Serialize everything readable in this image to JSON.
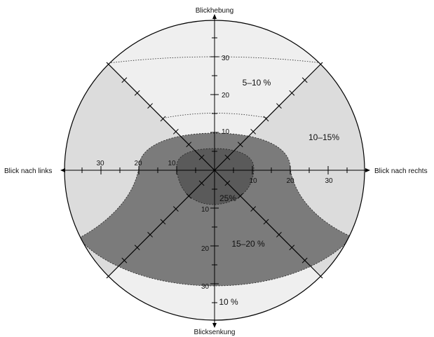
{
  "axes": {
    "top": "Blickhebung",
    "bottom": "Blicksenkung",
    "left": "Blick nach links",
    "right": "Blick nach rechts"
  },
  "ticks": {
    "top": [
      "10",
      "20",
      "30"
    ],
    "bottom": [
      "10",
      "20",
      "30"
    ],
    "left": [
      "10",
      "20",
      "30"
    ],
    "right": [
      "10",
      "20",
      "30"
    ]
  },
  "zones": {
    "upper": "5–10 %",
    "right": "10–15%",
    "lower": "15–20 %",
    "center": "25%",
    "bottom": "10 %"
  },
  "colors": {
    "zone_light": "#efefef",
    "zone_mid": "#dcdcdc",
    "zone_dark": "#7b7b7b",
    "zone_center": "#5a5a5a",
    "line": "#000000"
  }
}
